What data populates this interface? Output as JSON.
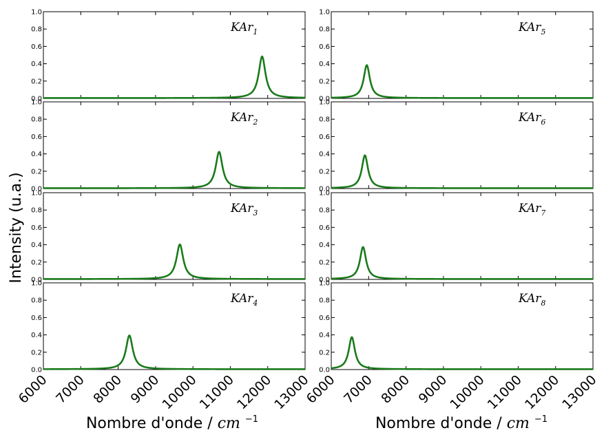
{
  "chart_data": {
    "type": "line",
    "ylabel": "Intensity (u.a.)",
    "xlabel": "Nombre d'onde /",
    "xlabel_unit": "cm",
    "xlabel_unit_exp": "−1",
    "xlim": [
      6000,
      13000
    ],
    "ylim": [
      0,
      1.0
    ],
    "xticks": [
      6000,
      7000,
      8000,
      9000,
      10000,
      11000,
      12000,
      13000
    ],
    "xtick_labels": [
      "6000",
      "7000",
      "8000",
      "9000",
      "10000",
      "11000",
      "12000",
      "13000"
    ],
    "yticks": [
      0.0,
      0.2,
      0.4,
      0.6,
      0.8,
      1.0
    ],
    "ytick_labels": [
      "0.0",
      "0.2",
      "0.4",
      "0.6",
      "0.8",
      "1.0"
    ],
    "line_color": "#1a7a1a",
    "grid": false,
    "panels": [
      {
        "label": "KAr",
        "sub": "1",
        "column": 0,
        "row": 0,
        "peak_x": 11850,
        "peak_y": 0.48,
        "width": 110
      },
      {
        "label": "KAr",
        "sub": "2",
        "column": 0,
        "row": 1,
        "peak_x": 10700,
        "peak_y": 0.42,
        "width": 110
      },
      {
        "label": "KAr",
        "sub": "3",
        "column": 0,
        "row": 2,
        "peak_x": 9650,
        "peak_y": 0.4,
        "width": 110
      },
      {
        "label": "KAr",
        "sub": "4",
        "column": 0,
        "row": 3,
        "peak_x": 8300,
        "peak_y": 0.39,
        "width": 110
      },
      {
        "label": "KAr",
        "sub": "5",
        "column": 1,
        "row": 0,
        "peak_x": 6950,
        "peak_y": 0.38,
        "width": 100
      },
      {
        "label": "KAr",
        "sub": "6",
        "column": 1,
        "row": 1,
        "peak_x": 6900,
        "peak_y": 0.38,
        "width": 100
      },
      {
        "label": "KAr",
        "sub": "7",
        "column": 1,
        "row": 2,
        "peak_x": 6850,
        "peak_y": 0.37,
        "width": 100
      },
      {
        "label": "KAr",
        "sub": "8",
        "column": 1,
        "row": 3,
        "peak_x": 6550,
        "peak_y": 0.37,
        "width": 100
      }
    ]
  }
}
